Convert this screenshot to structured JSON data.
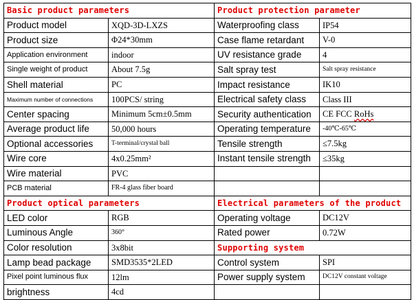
{
  "sections": {
    "basic": "Basic product parameters",
    "protection": "Product protection parameter",
    "optical": "Product optical parameters",
    "electrical": "Electrical parameters of the product",
    "supporting": "Supporting system"
  },
  "basic_rows": [
    {
      "label": "Product model",
      "value": "XQD-3D-LXZS"
    },
    {
      "label": "Product size",
      "value": "Φ24*30mm"
    },
    {
      "label": "Application environment",
      "value": "indoor"
    },
    {
      "label": "Single weight of product",
      "value": "About 7.5g"
    },
    {
      "label": "Shell material",
      "value": "PC"
    },
    {
      "label": "Maximum number of connections",
      "value": "100PCS/ string"
    },
    {
      "label": "Center spacing",
      "value": "Minimum 5cm±0.5mm"
    },
    {
      "label": "Average product life",
      "value": "50,000 hours"
    },
    {
      "label": "Optional accessories",
      "value": "T-terminal/crystal ball"
    },
    {
      "label": "Wire core",
      "value": "4x0.25mm²"
    },
    {
      "label": "Wire material",
      "value": "PVC"
    },
    {
      "label": "PCB material",
      "value": "FR-4 glass fiber board"
    }
  ],
  "protection_rows": [
    {
      "label": "Waterproofing class",
      "value": "IP54"
    },
    {
      "label": "Case flame retardant",
      "value": "V-0"
    },
    {
      "label": "UV resistance grade",
      "value": "4"
    },
    {
      "label": "Salt spray test",
      "value": "Salt spray resistance"
    },
    {
      "label": "Impact resistance",
      "value": "IK10"
    },
    {
      "label": "Electrical safety class",
      "value": "Class III"
    },
    {
      "label": "Security authentication",
      "value": "CE FCC",
      "value_extra": "RoHs"
    },
    {
      "label": "Operating temperature",
      "value": "-40℃-65℃"
    },
    {
      "label": "Tensile strength",
      "value": "≤7.5kg"
    },
    {
      "label": "Instant tensile strength",
      "value": "≤35kg"
    }
  ],
  "optical_rows": [
    {
      "label": "LED color",
      "value": "RGB"
    },
    {
      "label": "Luminous Angle",
      "value": "360°"
    },
    {
      "label": "Color resolution",
      "value": "3x8bit"
    },
    {
      "label": "Lamp bead package",
      "value": "SMD3535*2LED"
    },
    {
      "label": "Pixel point luminous flux",
      "value": "12lm"
    },
    {
      "label": "brightness",
      "value": "4cd"
    }
  ],
  "electrical_rows": [
    {
      "label": "Operating voltage",
      "value": "DC12V"
    },
    {
      "label": "Rated power",
      "value": "0.72W"
    }
  ],
  "supporting_rows": [
    {
      "label": "Control system",
      "value": "SPI"
    },
    {
      "label": "Power supply system",
      "value": "DC12V constant voltage"
    }
  ]
}
